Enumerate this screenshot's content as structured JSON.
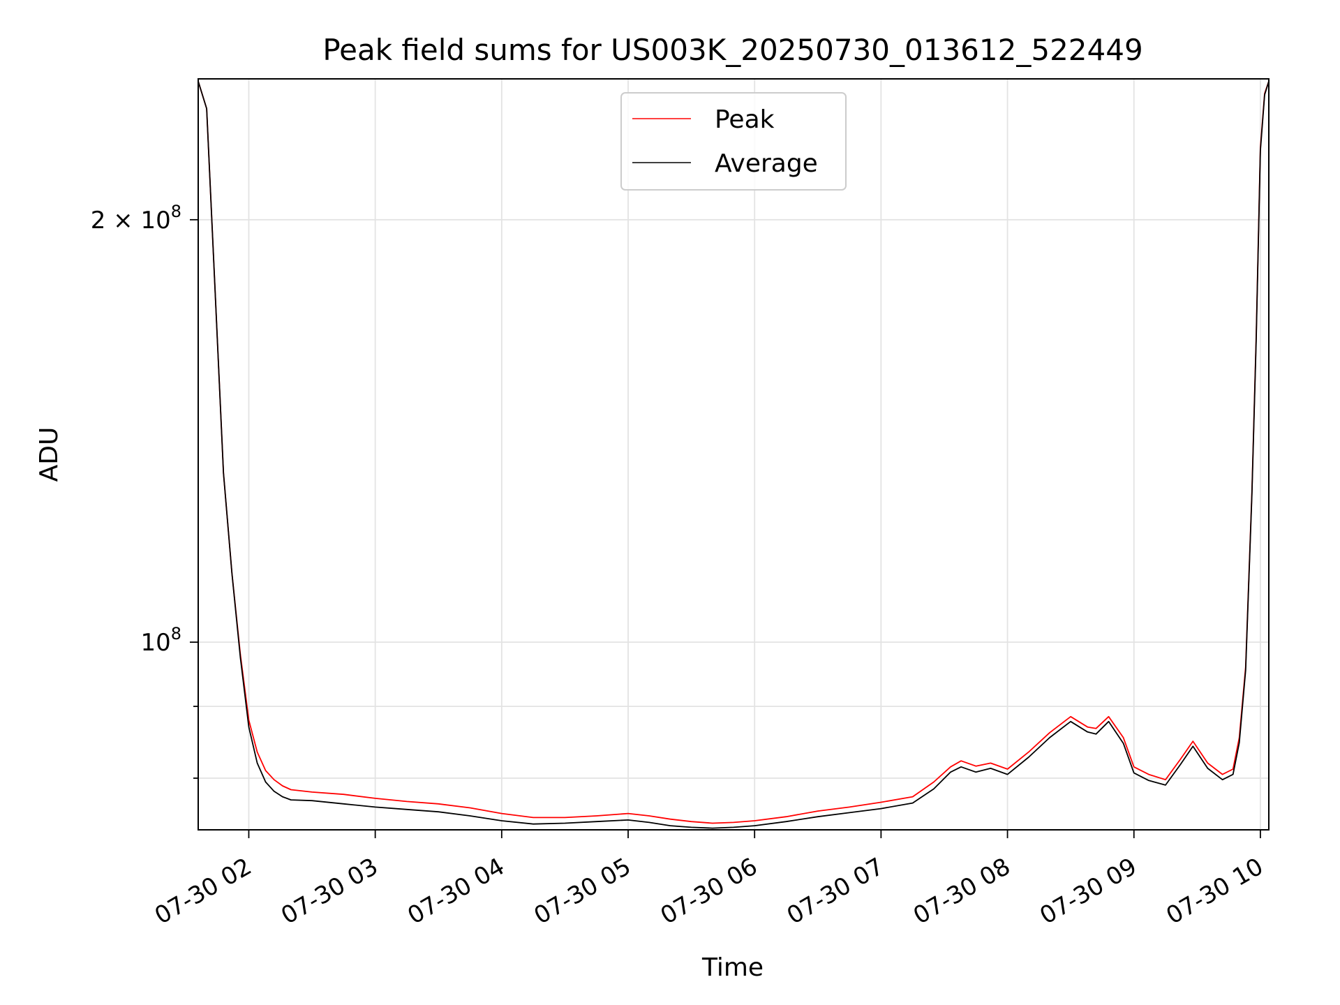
{
  "chart_data": {
    "type": "line",
    "title": "Peak field sums for US003K_20250730_013612_522449",
    "xlabel": "Time",
    "ylabel": "ADU",
    "yscale": "log",
    "grid": true,
    "legend_position": "top-center",
    "xlim": [
      "2025-07-30 01:36",
      "2025-07-30 10:04"
    ],
    "ylim": [
      73500000,
      252000000
    ],
    "x_ticks": [
      {
        "value": "2025-07-30 02:00",
        "label": "07-30 02"
      },
      {
        "value": "2025-07-30 03:00",
        "label": "07-30 03"
      },
      {
        "value": "2025-07-30 04:00",
        "label": "07-30 04"
      },
      {
        "value": "2025-07-30 05:00",
        "label": "07-30 05"
      },
      {
        "value": "2025-07-30 06:00",
        "label": "07-30 06"
      },
      {
        "value": "2025-07-30 07:00",
        "label": "07-30 07"
      },
      {
        "value": "2025-07-30 08:00",
        "label": "07-30 08"
      },
      {
        "value": "2025-07-30 09:00",
        "label": "07-30 09"
      },
      {
        "value": "2025-07-30 10:00",
        "label": "07-30 10"
      }
    ],
    "y_major_ticks": [
      {
        "value": 100000000,
        "base": "10",
        "exp": "8",
        "mant": ""
      },
      {
        "value": 200000000,
        "base": "10",
        "exp": "8",
        "mant": "2 × "
      }
    ],
    "y_minor_gridlines": [
      80000000,
      90000000
    ],
    "x": [
      "2025-07-30 01:36",
      "2025-07-30 01:40",
      "2025-07-30 01:44",
      "2025-07-30 01:48",
      "2025-07-30 01:52",
      "2025-07-30 01:56",
      "2025-07-30 02:00",
      "2025-07-30 02:04",
      "2025-07-30 02:08",
      "2025-07-30 02:12",
      "2025-07-30 02:16",
      "2025-07-30 02:20",
      "2025-07-30 02:30",
      "2025-07-30 02:45",
      "2025-07-30 03:00",
      "2025-07-30 03:15",
      "2025-07-30 03:30",
      "2025-07-30 03:45",
      "2025-07-30 04:00",
      "2025-07-30 04:15",
      "2025-07-30 04:30",
      "2025-07-30 04:45",
      "2025-07-30 05:00",
      "2025-07-30 05:10",
      "2025-07-30 05:20",
      "2025-07-30 05:30",
      "2025-07-30 05:40",
      "2025-07-30 05:50",
      "2025-07-30 06:00",
      "2025-07-30 06:15",
      "2025-07-30 06:30",
      "2025-07-30 06:45",
      "2025-07-30 07:00",
      "2025-07-30 07:15",
      "2025-07-30 07:25",
      "2025-07-30 07:33",
      "2025-07-30 07:38",
      "2025-07-30 07:45",
      "2025-07-30 07:52",
      "2025-07-30 08:00",
      "2025-07-30 08:10",
      "2025-07-30 08:20",
      "2025-07-30 08:30",
      "2025-07-30 08:38",
      "2025-07-30 08:42",
      "2025-07-30 08:48",
      "2025-07-30 08:55",
      "2025-07-30 09:00",
      "2025-07-30 09:07",
      "2025-07-30 09:15",
      "2025-07-30 09:22",
      "2025-07-30 09:28",
      "2025-07-30 09:35",
      "2025-07-30 09:42",
      "2025-07-30 09:47",
      "2025-07-30 09:50",
      "2025-07-30 09:53",
      "2025-07-30 09:56",
      "2025-07-30 09:58",
      "2025-07-30 10:00",
      "2025-07-30 10:02",
      "2025-07-30 10:04"
    ],
    "series": [
      {
        "name": "Peak",
        "color": "#ff0000",
        "values": [
          251000000,
          240000000,
          178000000,
          132000000,
          112000000,
          98000000,
          88000000,
          83500000,
          81000000,
          79800000,
          79000000,
          78500000,
          78200000,
          77900000,
          77400000,
          77000000,
          76700000,
          76200000,
          75500000,
          75000000,
          75000000,
          75200000,
          75500000,
          75200000,
          74800000,
          74500000,
          74300000,
          74400000,
          74600000,
          75100000,
          75800000,
          76300000,
          76900000,
          77600000,
          79500000,
          81500000,
          82300000,
          81600000,
          82000000,
          81200000,
          83500000,
          86200000,
          88500000,
          87000000,
          86800000,
          88500000,
          85500000,
          81500000,
          80500000,
          79800000,
          82500000,
          85000000,
          82000000,
          80500000,
          81200000,
          85500000,
          96000000,
          128000000,
          165000000,
          225000000,
          246000000,
          251000000
        ]
      },
      {
        "name": "Average",
        "color": "#000000",
        "values": [
          251000000,
          240000000,
          178000000,
          132000000,
          112000000,
          97500000,
          87000000,
          82000000,
          79500000,
          78300000,
          77600000,
          77200000,
          77100000,
          76700000,
          76300000,
          76000000,
          75700000,
          75200000,
          74600000,
          74200000,
          74300000,
          74500000,
          74700000,
          74400000,
          74000000,
          73800000,
          73700000,
          73800000,
          74000000,
          74500000,
          75100000,
          75600000,
          76100000,
          76800000,
          78600000,
          80800000,
          81500000,
          80800000,
          81300000,
          80500000,
          82800000,
          85500000,
          87800000,
          86300000,
          86000000,
          87800000,
          84700000,
          80700000,
          79700000,
          79100000,
          81800000,
          84300000,
          81300000,
          79800000,
          80500000,
          84800000,
          95500000,
          127500000,
          164000000,
          224000000,
          245500000,
          251000000
        ]
      }
    ]
  }
}
